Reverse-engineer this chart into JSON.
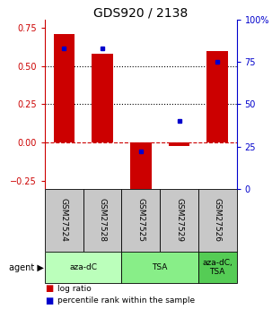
{
  "title": "GDS920 / 2138",
  "samples": [
    "GSM27524",
    "GSM27528",
    "GSM27525",
    "GSM27529",
    "GSM27526"
  ],
  "log_ratios": [
    0.71,
    0.58,
    -0.3,
    -0.02,
    0.6
  ],
  "percentile_rank_pct": [
    83,
    83,
    22,
    40,
    75
  ],
  "ylim_left": [
    -0.3,
    0.8
  ],
  "ylim_right": [
    0,
    100
  ],
  "yticks_left": [
    -0.25,
    0,
    0.25,
    0.5,
    0.75
  ],
  "yticks_right": [
    0,
    25,
    50,
    75,
    100
  ],
  "hlines_dotted": [
    0.25,
    0.5
  ],
  "hline_dashed": 0,
  "bar_color": "#CC0000",
  "dot_color": "#0000CC",
  "agent_groups": [
    {
      "label": "aza-dC",
      "indices": [
        0,
        1
      ],
      "color": "#bbffbb"
    },
    {
      "label": "TSA",
      "indices": [
        2,
        3
      ],
      "color": "#88ee88"
    },
    {
      "label": "aza-dC,\nTSA",
      "indices": [
        4
      ],
      "color": "#55cc55"
    }
  ],
  "sample_cell_color": "#c8c8c8",
  "legend_bar_color": "#CC0000",
  "legend_dot_color": "#0000CC",
  "legend_label_bar": "log ratio",
  "legend_label_dot": "percentile rank within the sample",
  "left_axis_color": "#CC0000",
  "right_axis_color": "#0000CC",
  "bar_width": 0.55,
  "title_fontsize": 10
}
